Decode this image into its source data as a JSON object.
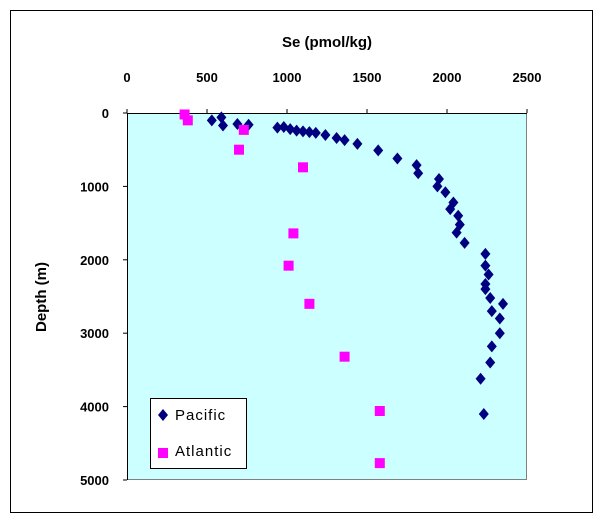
{
  "chart_data": {
    "type": "scatter",
    "xlabel": "Se (pmol/kg)",
    "ylabel": "Depth (m)",
    "xlim": [
      0,
      2500
    ],
    "ylim": [
      0,
      5000
    ],
    "x_axis_position": "top",
    "y_axis_inverted": true,
    "x_ticks": [
      "0",
      "500",
      "1000",
      "1500",
      "2000",
      "2500"
    ],
    "y_ticks": [
      "0",
      "1000",
      "2000",
      "3000",
      "4000",
      "5000"
    ],
    "grid": false,
    "legend_position": "bottom-left",
    "plot_background": "#ccffff",
    "series": [
      {
        "name": "Pacific",
        "marker": "diamond",
        "color": "#000080",
        "points": [
          {
            "x": 530,
            "y": 100
          },
          {
            "x": 590,
            "y": 60
          },
          {
            "x": 600,
            "y": 170
          },
          {
            "x": 690,
            "y": 150
          },
          {
            "x": 760,
            "y": 160
          },
          {
            "x": 940,
            "y": 200
          },
          {
            "x": 980,
            "y": 190
          },
          {
            "x": 1020,
            "y": 220
          },
          {
            "x": 1060,
            "y": 240
          },
          {
            "x": 1100,
            "y": 250
          },
          {
            "x": 1140,
            "y": 260
          },
          {
            "x": 1180,
            "y": 270
          },
          {
            "x": 1240,
            "y": 300
          },
          {
            "x": 1310,
            "y": 340
          },
          {
            "x": 1360,
            "y": 370
          },
          {
            "x": 1440,
            "y": 420
          },
          {
            "x": 1570,
            "y": 510
          },
          {
            "x": 1690,
            "y": 620
          },
          {
            "x": 1810,
            "y": 710
          },
          {
            "x": 1820,
            "y": 820
          },
          {
            "x": 1950,
            "y": 900
          },
          {
            "x": 1940,
            "y": 1000
          },
          {
            "x": 1990,
            "y": 1080
          },
          {
            "x": 2040,
            "y": 1220
          },
          {
            "x": 2020,
            "y": 1310
          },
          {
            "x": 2070,
            "y": 1400
          },
          {
            "x": 2080,
            "y": 1520
          },
          {
            "x": 2060,
            "y": 1630
          },
          {
            "x": 2110,
            "y": 1770
          },
          {
            "x": 2240,
            "y": 1920
          },
          {
            "x": 2240,
            "y": 2080
          },
          {
            "x": 2260,
            "y": 2200
          },
          {
            "x": 2240,
            "y": 2330
          },
          {
            "x": 2240,
            "y": 2400
          },
          {
            "x": 2270,
            "y": 2520
          },
          {
            "x": 2350,
            "y": 2600
          },
          {
            "x": 2280,
            "y": 2700
          },
          {
            "x": 2330,
            "y": 2800
          },
          {
            "x": 2330,
            "y": 3000
          },
          {
            "x": 2280,
            "y": 3180
          },
          {
            "x": 2270,
            "y": 3400
          },
          {
            "x": 2210,
            "y": 3620
          },
          {
            "x": 2230,
            "y": 4100
          }
        ]
      },
      {
        "name": "Atlantic",
        "marker": "square",
        "color": "#ff00ff",
        "points": [
          {
            "x": 360,
            "y": 20
          },
          {
            "x": 380,
            "y": 100
          },
          {
            "x": 730,
            "y": 230
          },
          {
            "x": 700,
            "y": 500
          },
          {
            "x": 1100,
            "y": 740
          },
          {
            "x": 1040,
            "y": 1640
          },
          {
            "x": 1010,
            "y": 2080
          },
          {
            "x": 1140,
            "y": 2600
          },
          {
            "x": 1360,
            "y": 3320
          },
          {
            "x": 1580,
            "y": 4060
          },
          {
            "x": 1580,
            "y": 4770
          }
        ]
      }
    ]
  }
}
